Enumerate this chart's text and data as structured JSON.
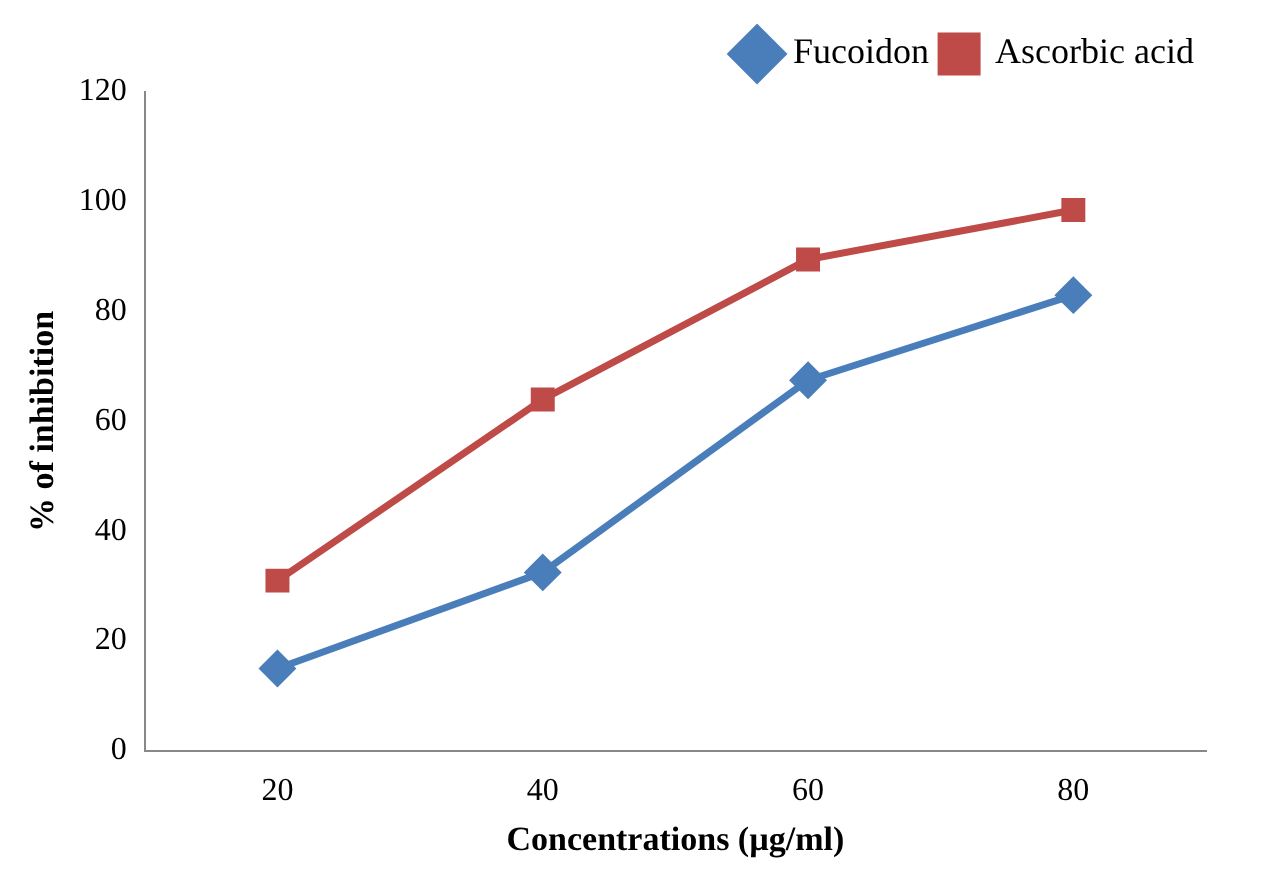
{
  "chart_data": {
    "type": "line",
    "xlabel": "Concentrations (µg/ml)",
    "ylabel": "% of inhibition",
    "categories": [
      "20",
      "40",
      "60",
      "80"
    ],
    "series": [
      {
        "name": "Fucoidon",
        "color": "#4a7ebb",
        "marker": "diamond",
        "values": [
          15,
          32.5,
          67.5,
          83
        ]
      },
      {
        "name": "Ascorbic acid",
        "color": "#be4b48",
        "marker": "square",
        "values": [
          31,
          64,
          89.5,
          98.5
        ]
      }
    ],
    "ylim": [
      0,
      120
    ],
    "yticks": [
      0,
      20,
      40,
      60,
      80,
      100,
      120
    ],
    "grid": false,
    "legend": "top"
  }
}
